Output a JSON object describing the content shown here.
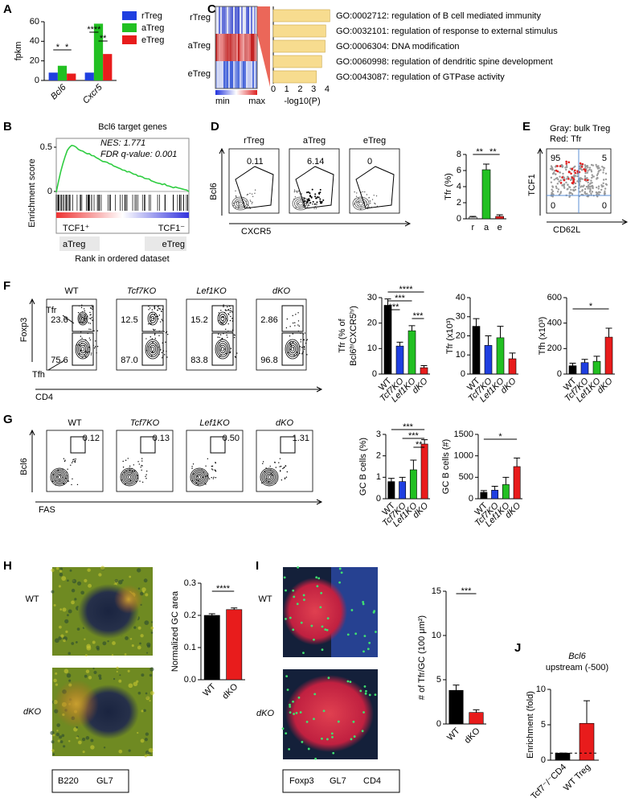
{
  "panels": [
    {
      "letter": "A",
      "chart": {
        "type": "bar",
        "ylabel": "fpkm",
        "categories": [
          "Bcl6",
          "Cxcr5"
        ],
        "series": [
          {
            "name": "rTreg",
            "color": "#1f3fe0",
            "values": [
              8,
              8
            ]
          },
          {
            "name": "aTreg",
            "color": "#22c022",
            "values": [
              15,
              58
            ]
          },
          {
            "name": "eTreg",
            "color": "#e81c1c",
            "values": [
              7,
              27
            ]
          }
        ],
        "ylim": [
          0,
          60
        ],
        "yticks": [
          0,
          20,
          40,
          60
        ],
        "signif": [
          "*",
          "*",
          "****",
          "**"
        ]
      }
    },
    {
      "letter": "C",
      "heatmap_rows": [
        "rTreg",
        "aTreg",
        "eTreg"
      ],
      "legend": [
        "min",
        "max"
      ],
      "chart": {
        "type": "barh",
        "xlabel": "-log10(P)",
        "color": "#f7dc8f",
        "categories": [
          "GO:0002712: regulation of B cell mediated immunity",
          "GO:0032101: regulation of response to external stimulus",
          "GO:0006304: DNA modification",
          "GO:0060998: regulation of dendritic spine development",
          "GO:0043087: regulation of GTPase activity"
        ],
        "label_colors": [
          "#e41a1c",
          "#000000",
          "#000000",
          "#000000",
          "#000000"
        ],
        "values": [
          4.2,
          3.9,
          3.85,
          3.6,
          3.2
        ],
        "xlim": [
          0,
          4.3
        ],
        "xticks": [
          0,
          1,
          2,
          3,
          4
        ]
      }
    },
    {
      "letter": "B",
      "title": "Bcl6 target genes",
      "stats": [
        "NES: 1.771",
        "FDR q-value: 0.001"
      ],
      "ylabel": "Enrichment score",
      "ylim": [
        0,
        0.6
      ],
      "yticks": [
        0.5,
        0
      ],
      "left_label": "TCF1⁺",
      "right_label": "TCF1⁻",
      "left_group": "aTreg",
      "right_group": "eTreg",
      "xlabel": "Rank in ordered dataset"
    },
    {
      "letter": "D",
      "plots": [
        {
          "title": "rTreg",
          "gate": "0.11"
        },
        {
          "title": "aTreg",
          "gate": "6.14"
        },
        {
          "title": "eTreg",
          "gate": "0"
        }
      ],
      "ylabel": "Bcl6",
      "xlabel": "CXCR5",
      "chart": {
        "type": "bar",
        "ylabel": "Tfr (%)",
        "categories": [
          "r",
          "a",
          "e"
        ],
        "values": [
          0.2,
          6.1,
          0.3
        ],
        "errors": [
          0.1,
          0.7,
          0.2
        ],
        "colors": [
          "#000000",
          "#22c022",
          "#e81c1c"
        ],
        "ylim": [
          0,
          8
        ],
        "yticks": [
          0,
          2,
          4,
          6,
          8
        ],
        "signif": [
          "**",
          "**"
        ]
      }
    },
    {
      "letter": "E",
      "notes": [
        "Gray: bulk Treg",
        "Red: Tfr"
      ],
      "quadrants": [
        "95",
        "5",
        "0",
        "0"
      ],
      "ylabel": "TCF1",
      "xlabel": "CD62L"
    },
    {
      "letter": "F",
      "plots": [
        {
          "title": "WT",
          "gates": [
            "23.6",
            "75.6"
          ]
        },
        {
          "title": "Tcf7KO",
          "gates": [
            "12.5",
            "87.0"
          ]
        },
        {
          "title": "Lef1KO",
          "gates": [
            "15.2",
            "83.8"
          ]
        },
        {
          "title": "dKO",
          "gates": [
            "2.86",
            "96.8"
          ]
        }
      ],
      "gate_names": [
        "Tfr",
        "Tfh"
      ],
      "ylabel": "Foxp3",
      "xlabel": "CD4",
      "charts": [
        {
          "type": "bar",
          "ylabel": [
            "Tfr (% of",
            "Bcl6ʰⁱCXCR5ʰⁱ)"
          ],
          "categories": [
            "WT",
            "Tcf7KO",
            "Lef1KO",
            "dKO"
          ],
          "values": [
            27,
            11,
            17,
            2.5
          ],
          "errors": [
            2.5,
            1.5,
            2,
            0.8
          ],
          "colors": [
            "#000000",
            "#1f3fe0",
            "#22c022",
            "#e81c1c"
          ],
          "ylim": [
            0,
            30
          ],
          "yticks": [
            0,
            10,
            20,
            30
          ],
          "signif": [
            "****",
            "***",
            "***",
            "***"
          ]
        },
        {
          "type": "bar",
          "ylabel": "Tfr (x10³)",
          "categories": [
            "WT",
            "Tcf7KO",
            "Lef1KO",
            "dKO"
          ],
          "values": [
            25,
            15,
            19,
            8
          ],
          "errors": [
            4,
            5,
            6,
            3
          ],
          "colors": [
            "#000000",
            "#1f3fe0",
            "#22c022",
            "#e81c1c"
          ],
          "ylim": [
            0,
            40
          ],
          "yticks": [
            0,
            10,
            20,
            30,
            40
          ]
        },
        {
          "type": "bar",
          "ylabel": "Tfh (x10³)",
          "categories": [
            "WT",
            "Tcf7KO",
            "Lef1KO",
            "dKO"
          ],
          "values": [
            65,
            90,
            100,
            290
          ],
          "errors": [
            20,
            25,
            40,
            70
          ],
          "colors": [
            "#000000",
            "#1f3fe0",
            "#22c022",
            "#e81c1c"
          ],
          "ylim": [
            0,
            600
          ],
          "yticks": [
            0,
            200,
            400,
            600
          ],
          "signif": [
            "*"
          ]
        }
      ]
    },
    {
      "letter": "G",
      "plots": [
        {
          "title": "WT",
          "gate": "0.12"
        },
        {
          "title": "Tcf7KO",
          "gate": "0.13"
        },
        {
          "title": "Lef1KO",
          "gate": "0.50"
        },
        {
          "title": "dKO",
          "gate": "1.31"
        }
      ],
      "ylabel": "Bcl6",
      "xlabel": "FAS",
      "charts": [
        {
          "type": "bar",
          "ylabel": "GC B cells (%)",
          "categories": [
            "WT",
            "Tcf7KO",
            "Lef1KO",
            "dKO"
          ],
          "values": [
            0.8,
            0.8,
            1.35,
            2.55
          ],
          "errors": [
            0.15,
            0.2,
            0.45,
            0.2
          ],
          "colors": [
            "#000000",
            "#1f3fe0",
            "#22c022",
            "#e81c1c"
          ],
          "ylim": [
            0,
            3
          ],
          "yticks": [
            0,
            1,
            2,
            3
          ],
          "signif": [
            "***",
            "***",
            "**"
          ]
        },
        {
          "type": "bar",
          "ylabel": "GC B cells (#)",
          "categories": [
            "WT",
            "Tcf7KO",
            "Lef1KO",
            "dKO"
          ],
          "values": [
            150,
            200,
            330,
            750
          ],
          "errors": [
            40,
            90,
            170,
            200
          ],
          "colors": [
            "#000000",
            "#1f3fe0",
            "#22c022",
            "#e81c1c"
          ],
          "ylim": [
            0,
            1500
          ],
          "yticks": [
            0,
            500,
            1000,
            1500
          ],
          "signif": [
            "*"
          ]
        }
      ]
    },
    {
      "letter": "H",
      "rows": [
        "WT",
        "dKO"
      ],
      "legend": [
        "B220",
        "GL7"
      ],
      "chart": {
        "type": "bar",
        "ylabel": "Normalized GC area",
        "categories": [
          "WT",
          "dKO"
        ],
        "values": [
          0.2,
          0.218
        ],
        "errors": [
          0.005,
          0.005
        ],
        "colors": [
          "#000000",
          "#e81c1c"
        ],
        "ylim": [
          0,
          0.3
        ],
        "yticks": [
          {
            "value": 0,
            "label": "0.0"
          },
          0.1,
          0.2,
          0.3
        ],
        "signif": [
          "****"
        ]
      }
    },
    {
      "letter": "I",
      "rows": [
        "WT",
        "dKO"
      ],
      "legend": [
        "Foxp3",
        "GL7",
        "CD4"
      ],
      "chart": {
        "type": "bar",
        "ylabel": "# of Tfr/GC (100 μm²)",
        "categories": [
          "WT",
          "dKO"
        ],
        "values": [
          3.8,
          1.3
        ],
        "errors": [
          0.6,
          0.3
        ],
        "colors": [
          "#000000",
          "#e81c1c"
        ],
        "ylim": [
          0,
          15
        ],
        "yticks": [
          0,
          5,
          10,
          15
        ],
        "signif": [
          "***"
        ]
      }
    },
    {
      "letter": "J",
      "title": "Bcl6",
      "subtitle": "upstream (-500)",
      "chart": {
        "type": "bar",
        "ylabel": "Enrichment (fold)",
        "categories": [
          "Tcf7⁻/⁻CD4",
          "WT Treg"
        ],
        "values": [
          1,
          5.2
        ],
        "errors": [
          0,
          3.2
        ],
        "colors": [
          "#000000",
          "#e81c1c"
        ],
        "ylim": [
          0,
          10
        ],
        "yticks": [
          0,
          5,
          10
        ],
        "reference_line": 1
      }
    }
  ]
}
